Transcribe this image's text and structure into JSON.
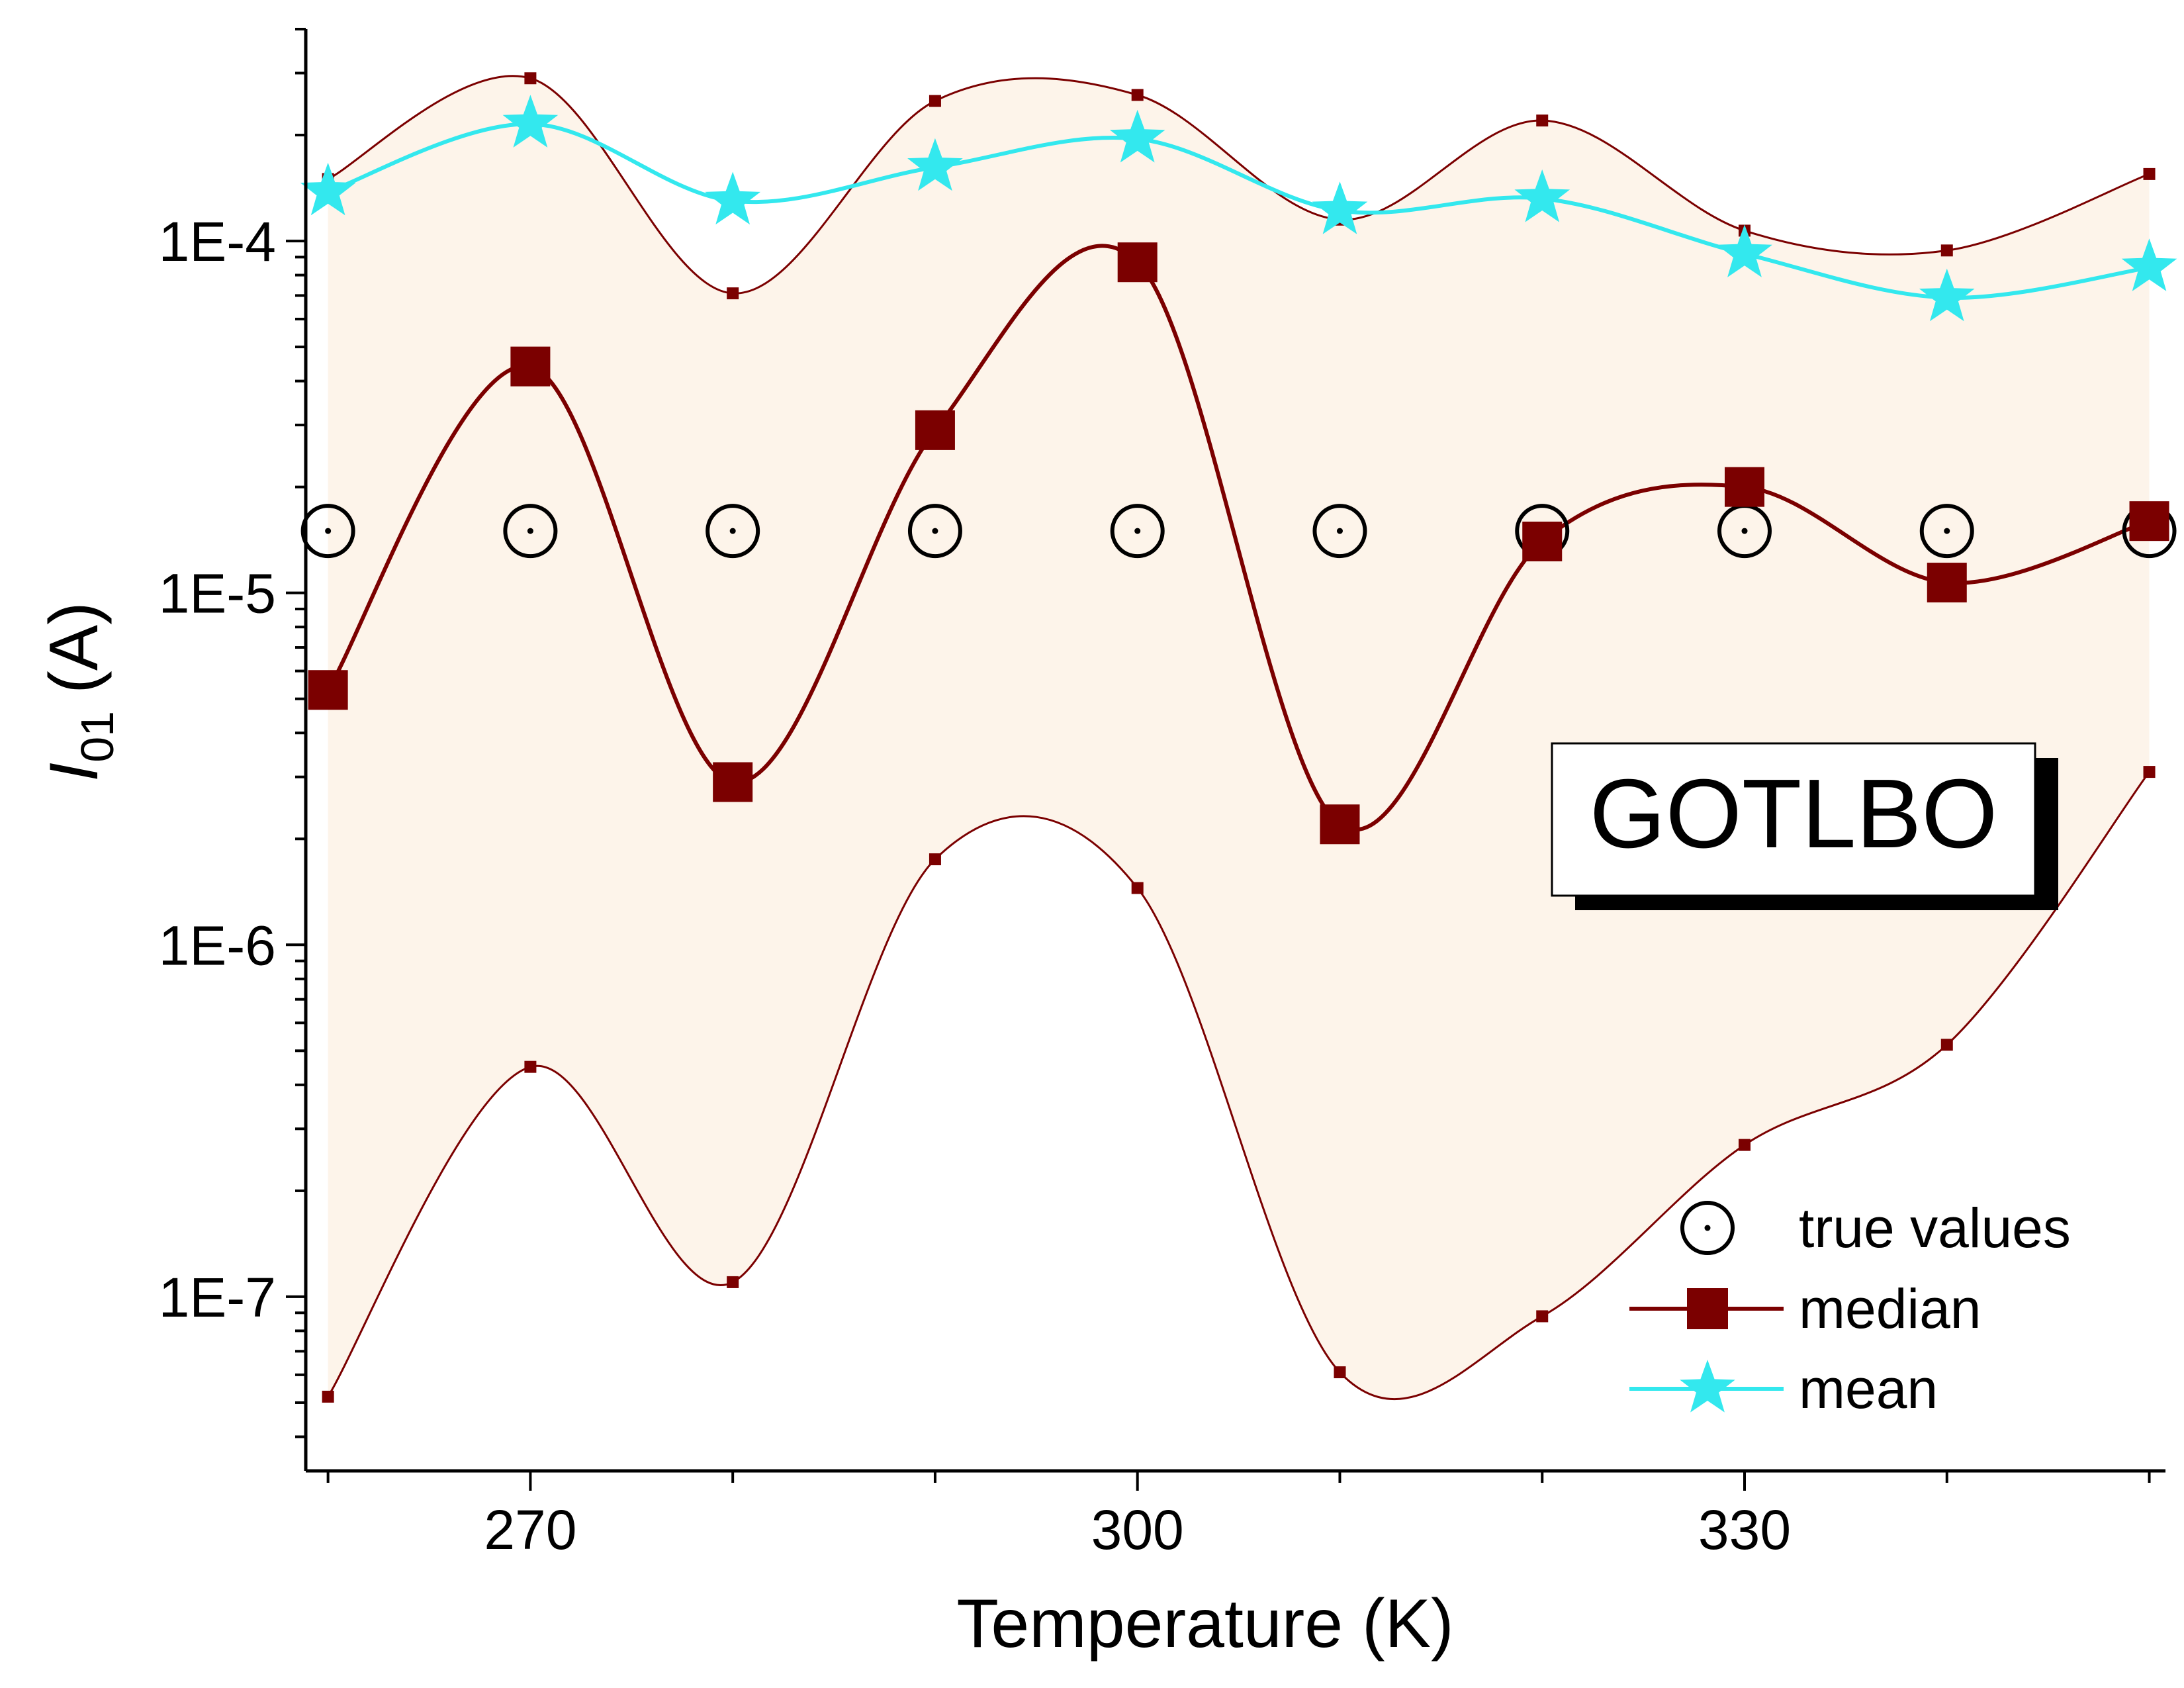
{
  "chart_data": {
    "type": "line",
    "title": "",
    "xlabel": "Temperature (K)",
    "ylabel": {
      "symbol": "I",
      "subscript": "01",
      "unit": "(A)"
    },
    "x_ticks": [
      "270",
      "300",
      "330"
    ],
    "x_tick_values": [
      270,
      300,
      330
    ],
    "y_ticks": [
      "1E-7",
      "1E-6",
      "1E-5",
      "1E-4"
    ],
    "y_tick_values": [
      1e-07,
      1e-06,
      1e-05,
      0.0001
    ],
    "xlim": [
      258.9,
      350.8
    ],
    "ylim": [
      3.2e-08,
      0.0004
    ],
    "y_scale": "log",
    "grid": false,
    "annotation": "GOTLBO",
    "x": [
      260,
      270,
      280,
      290,
      300,
      310,
      320,
      330,
      340,
      350
    ],
    "band": {
      "fill": "#fdf4ea",
      "upper": [
        0.00015,
        0.00029,
        7.1e-05,
        0.00025,
        0.00026,
        0.000115,
        0.00022,
        0.000107,
        9.4e-05,
        0.000155
      ],
      "lower": [
        5.2e-08,
        4.5e-07,
        1.1e-07,
        1.75e-06,
        1.45e-06,
        6.1e-08,
        8.8e-08,
        2.7e-07,
        5.2e-07,
        3.1e-06
      ]
    },
    "series": [
      {
        "name": "true values",
        "marker": "circle-dot",
        "color": "#000000",
        "values": [
          1.5e-05,
          1.5e-05,
          1.5e-05,
          1.5e-05,
          1.5e-05,
          1.5e-05,
          1.5e-05,
          1.5e-05,
          1.5e-05,
          1.5e-05
        ]
      },
      {
        "name": "median",
        "marker": "square",
        "color": "#7b0000",
        "values": [
          5.3e-06,
          4.4e-05,
          2.9e-06,
          2.9e-05,
          8.7e-05,
          2.2e-06,
          1.4e-05,
          2e-05,
          1.07e-05,
          1.6e-05
        ]
      },
      {
        "name": "mean",
        "marker": "star",
        "color": "#33e8ee",
        "values": [
          0.000138,
          0.000215,
          0.00013,
          0.000162,
          0.000195,
          0.000122,
          0.000132,
          9.2e-05,
          6.9e-05,
          8.4e-05
        ]
      }
    ],
    "legend": {
      "position": "bottom-right"
    }
  }
}
